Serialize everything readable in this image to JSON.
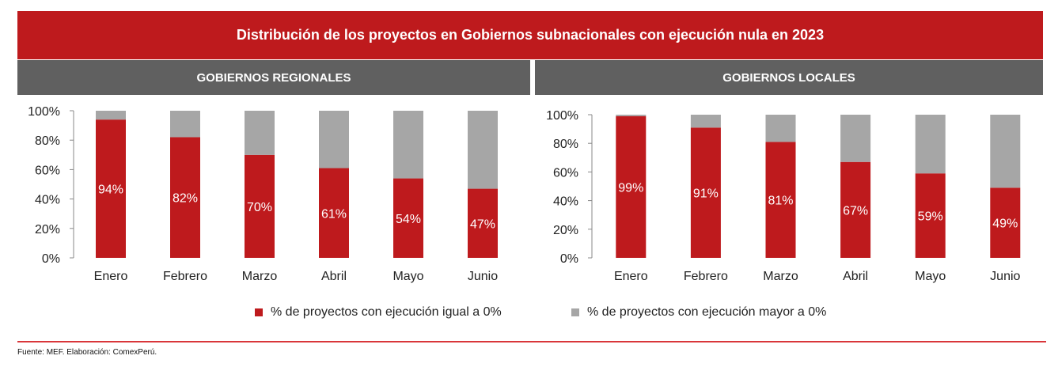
{
  "title": "Distribución de los proyectos en Gobiernos subnacionales con ejecución nula en 2023",
  "colors": {
    "zero": "#BE1A1D",
    "positive": "#A6A6A6",
    "header": "#BE1A1D",
    "subheader": "#606060"
  },
  "legend": [
    "% de proyectos con ejecución igual a 0%",
    "% de proyectos con ejecución mayor a 0%"
  ],
  "footer": "Fuente: MEF. Elaboración: ComexPerú.",
  "chart_data": [
    {
      "type": "bar",
      "stacked": true,
      "title": "GOBIERNOS REGIONALES",
      "categories": [
        "Enero",
        "Febrero",
        "Marzo",
        "Abril",
        "Mayo",
        "Junio"
      ],
      "yticks": [
        "0%",
        "20%",
        "40%",
        "60%",
        "80%",
        "100%"
      ],
      "ylim": [
        0,
        100
      ],
      "series": [
        {
          "name": "% de proyectos con ejecución igual a 0%",
          "values": [
            94,
            82,
            70,
            61,
            54,
            47
          ],
          "labels": [
            "94%",
            "82%",
            "70%",
            "61%",
            "54%",
            "47%"
          ]
        },
        {
          "name": "% de proyectos con ejecución mayor a 0%",
          "values": [
            6,
            18,
            30,
            39,
            46,
            53
          ]
        }
      ]
    },
    {
      "type": "bar",
      "stacked": true,
      "title": "GOBIERNOS LOCALES",
      "categories": [
        "Enero",
        "Febrero",
        "Marzo",
        "Abril",
        "Mayo",
        "Junio"
      ],
      "yticks": [
        "0%",
        "20%",
        "40%",
        "60%",
        "80%",
        "100%"
      ],
      "ylim": [
        0,
        100
      ],
      "series": [
        {
          "name": "% de proyectos con ejecución igual a 0%",
          "values": [
            99,
            91,
            81,
            67,
            59,
            49
          ],
          "labels": [
            "99%",
            "91%",
            "81%",
            "67%",
            "59%",
            "49%"
          ]
        },
        {
          "name": "% de proyectos con ejecución mayor a 0%",
          "values": [
            1,
            9,
            19,
            33,
            41,
            51
          ]
        }
      ]
    }
  ]
}
